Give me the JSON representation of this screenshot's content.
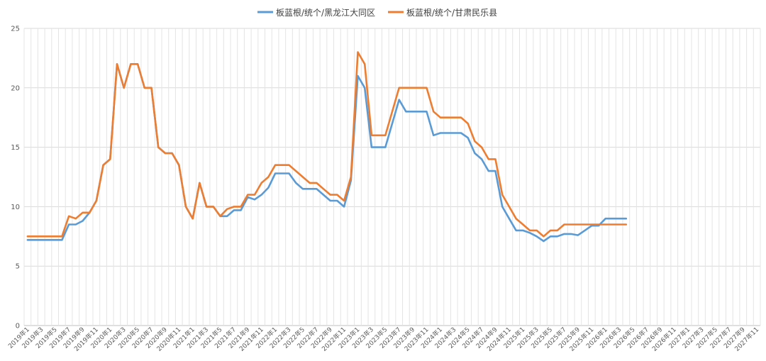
{
  "chart_data": {
    "type": "line",
    "title": "",
    "xlabel": "",
    "ylabel": "",
    "ylim": [
      0,
      25
    ],
    "yticks": [
      0,
      5,
      10,
      15,
      20,
      25
    ],
    "grid": true,
    "legend_position": "top",
    "categories": [
      "2019年1",
      "2019年2",
      "2019年3",
      "2019年4",
      "2019年5",
      "2019年6",
      "2019年7",
      "2019年8",
      "2019年9",
      "2019年10",
      "2019年11",
      "2019年12",
      "2020年1",
      "2020年2",
      "2020年3",
      "2020年4",
      "2020年5",
      "2020年6",
      "2020年7",
      "2020年8",
      "2020年9",
      "2020年10",
      "2020年11",
      "2020年12",
      "2021年1",
      "2021年2",
      "2021年3",
      "2021年4",
      "2021年5",
      "2021年6",
      "2021年7",
      "2021年8",
      "2021年9",
      "2021年10",
      "2021年11",
      "2021年12",
      "2022年1",
      "2022年2",
      "2022年3",
      "2022年4",
      "2022年5",
      "2022年6",
      "2022年7",
      "2022年8",
      "2022年9",
      "2022年10",
      "2022年11",
      "2022年12",
      "2023年1",
      "2023年2",
      "2023年3",
      "2023年4",
      "2023年5",
      "2023年6",
      "2023年7",
      "2023年8",
      "2023年9",
      "2023年10",
      "2023年11",
      "2023年12",
      "2024年1",
      "2024年2",
      "2024年3",
      "2024年4",
      "2024年5",
      "2024年6",
      "2024年7",
      "2024年8",
      "2024年9",
      "2024年10",
      "2024年11",
      "2024年12",
      "2025年1",
      "2025年2",
      "2025年3",
      "2025年4",
      "2025年5",
      "2025年6",
      "2025年7",
      "2025年8",
      "2025年9",
      "2025年10",
      "2025年11",
      "2025年12",
      "2026年1",
      "2026年2",
      "2026年3",
      "2026年4",
      "2026年5",
      "2026年6",
      "2026年7",
      "2026年8",
      "2026年9",
      "2026年10",
      "2026年11",
      "2026年12",
      "2027年1",
      "2027年2",
      "2027年3",
      "2027年4",
      "2027年5",
      "2027年6",
      "2027年7",
      "2027年8",
      "2027年9",
      "2027年10",
      "2027年11"
    ],
    "xtick_labels": [
      "2019年1",
      "2019年3",
      "2019年5",
      "2019年7",
      "2019年9",
      "2019年11",
      "2020年1",
      "2020年3",
      "2020年5",
      "2020年7",
      "2020年9",
      "2020年11",
      "2021年1",
      "2021年3",
      "2021年5",
      "2021年7",
      "2021年9",
      "2021年11",
      "2022年1",
      "2022年3",
      "2022年5",
      "2022年7",
      "2022年9",
      "2022年11",
      "2023年1",
      "2023年3",
      "2023年5",
      "2023年7",
      "2023年9",
      "2023年11",
      "2024年1",
      "2024年3",
      "2024年5",
      "2024年7",
      "2024年9",
      "2024年11",
      "2025年1",
      "2025年3",
      "2025年5",
      "2025年7",
      "2025年9",
      "2025年11",
      "2026年1",
      "2026年3",
      "2026年5",
      "2026年7",
      "2026年9",
      "2026年11",
      "2027年1",
      "2027年3",
      "2027年5",
      "2027年7",
      "2027年9",
      "2027年11"
    ],
    "series": [
      {
        "name": "板蓝根/统个/黑龙江大同区",
        "color": "#5B9BD5",
        "values": [
          7.2,
          7.2,
          7.2,
          7.2,
          7.2,
          7.2,
          8.5,
          8.5,
          8.8,
          9.5,
          10.5,
          13.5,
          14.0,
          22.0,
          20.0,
          22.0,
          22.0,
          20.0,
          20.0,
          15.0,
          14.5,
          14.5,
          13.5,
          10.0,
          9.0,
          12.0,
          10.0,
          10.0,
          9.2,
          9.2,
          9.7,
          9.7,
          10.8,
          10.6,
          11.0,
          11.6,
          12.8,
          12.8,
          12.8,
          12.0,
          11.5,
          11.5,
          11.5,
          11.0,
          10.5,
          10.5,
          10.0,
          12.2,
          21.0,
          20.0,
          15.0,
          15.0,
          15.0,
          17.0,
          19.0,
          18.0,
          18.0,
          18.0,
          18.0,
          16.0,
          16.2,
          16.2,
          16.2,
          16.2,
          15.8,
          14.5,
          14.0,
          13.0,
          13.0,
          10.0,
          9.0,
          8.0,
          8.0,
          7.8,
          7.5,
          7.1,
          7.5,
          7.5,
          7.7,
          7.7,
          7.6,
          8.0,
          8.4,
          8.4,
          9.0,
          9.0,
          9.0,
          9.0,
          null,
          null,
          null,
          null,
          null,
          null,
          null,
          null,
          null,
          null,
          null,
          null,
          null,
          null,
          null,
          null,
          null,
          null,
          null
        ]
      },
      {
        "name": "板蓝根/统个/甘肃民乐县",
        "color": "#ED7D31",
        "values": [
          7.5,
          7.5,
          7.5,
          7.5,
          7.5,
          7.5,
          9.2,
          9.0,
          9.5,
          9.5,
          10.5,
          13.5,
          14.0,
          22.0,
          20.0,
          22.0,
          22.0,
          20.0,
          20.0,
          15.0,
          14.5,
          14.5,
          13.5,
          10.0,
          9.0,
          12.0,
          10.0,
          10.0,
          9.2,
          9.8,
          10.0,
          10.0,
          11.0,
          11.0,
          12.0,
          12.5,
          13.5,
          13.5,
          13.5,
          13.0,
          12.5,
          12.0,
          12.0,
          11.5,
          11.0,
          11.0,
          10.5,
          12.5,
          23.0,
          22.0,
          16.0,
          16.0,
          16.0,
          18.0,
          20.0,
          20.0,
          20.0,
          20.0,
          20.0,
          18.0,
          17.5,
          17.5,
          17.5,
          17.5,
          17.0,
          15.5,
          15.0,
          14.0,
          14.0,
          11.0,
          10.0,
          9.0,
          8.5,
          8.0,
          8.0,
          7.5,
          8.0,
          8.0,
          8.5,
          8.5,
          8.5,
          8.5,
          8.5,
          8.5,
          8.5,
          8.5,
          8.5,
          8.5,
          null,
          null,
          null,
          null,
          null,
          null,
          null,
          null,
          null,
          null,
          null,
          null,
          null,
          null,
          null,
          null,
          null,
          null,
          null
        ]
      }
    ]
  }
}
